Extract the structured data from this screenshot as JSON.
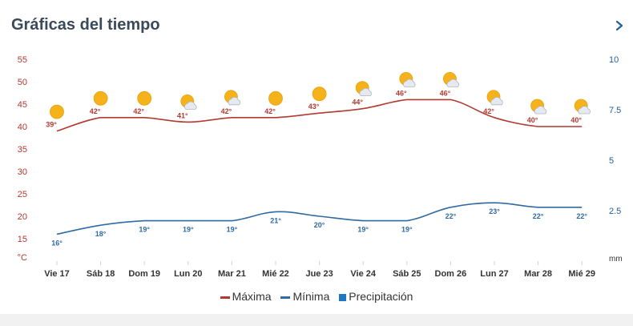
{
  "header": {
    "title": "Gráficas del tiempo",
    "next_icon": "chevron-right-icon"
  },
  "colors": {
    "max": "#b23a30",
    "min": "#2f6aa3",
    "precip": "#1f77c4",
    "left_axis": "#b23a30",
    "right_axis": "#1f5f9e",
    "sun": "#f5b21a"
  },
  "chart_data": {
    "type": "line",
    "categories": [
      "Vie 17",
      "Sáb 18",
      "Dom 19",
      "Lun 20",
      "Mar 21",
      "Mié 22",
      "Jue 23",
      "Vie 24",
      "Sáb 25",
      "Dom 26",
      "Lun 27",
      "Mar 28",
      "Mié 29"
    ],
    "series": [
      {
        "name": "Máxima",
        "axis": "left",
        "values": [
          39,
          42,
          42,
          41,
          42,
          42,
          43,
          44,
          46,
          46,
          42,
          40,
          40
        ],
        "labels": [
          "39°",
          "42°",
          "42°",
          "41°",
          "42°",
          "42°",
          "43°",
          "44°",
          "46°",
          "46°",
          "42°",
          "40°",
          "40°"
        ]
      },
      {
        "name": "Mínima",
        "axis": "left",
        "values": [
          16,
          18,
          19,
          19,
          19,
          21,
          20,
          19,
          19,
          22,
          23,
          22,
          22
        ],
        "labels": [
          "16°",
          "18°",
          "19°",
          "19°",
          "19°",
          "21°",
          "20°",
          "19°",
          "19°",
          "22°",
          "23°",
          "22°",
          "22°"
        ]
      },
      {
        "name": "Precipitación",
        "axis": "right",
        "values": [
          0,
          0,
          0,
          0,
          0,
          0,
          0,
          0,
          0,
          0,
          0,
          0,
          0
        ]
      }
    ],
    "left_axis": {
      "unit": "°C",
      "ylim": [
        10,
        55
      ],
      "ticks": [
        "55",
        "50",
        "45",
        "40",
        "35",
        "30",
        "25",
        "20",
        "15"
      ],
      "tick_values": [
        55,
        50,
        45,
        40,
        35,
        30,
        25,
        20,
        15
      ]
    },
    "right_axis": {
      "unit": "mm",
      "ylim": [
        0,
        10
      ],
      "ticks": [
        "10",
        "7.5",
        "5",
        "2.5"
      ],
      "tick_values": [
        10,
        7.5,
        5,
        2.5
      ]
    },
    "weather_icons": [
      "sun-icon",
      "sun-icon",
      "sun-icon",
      "partly-cloudy-icon",
      "partly-cloudy-icon",
      "sun-icon",
      "sun-icon",
      "partly-cloudy-icon",
      "partly-cloudy-icon",
      "partly-cloudy-icon",
      "partly-cloudy-icon",
      "partly-cloudy-icon",
      "partly-cloudy-icon"
    ],
    "grid": false,
    "legend_position": "bottom-center"
  },
  "legend": [
    "Máxima",
    "Mínima",
    "Precipitación"
  ]
}
